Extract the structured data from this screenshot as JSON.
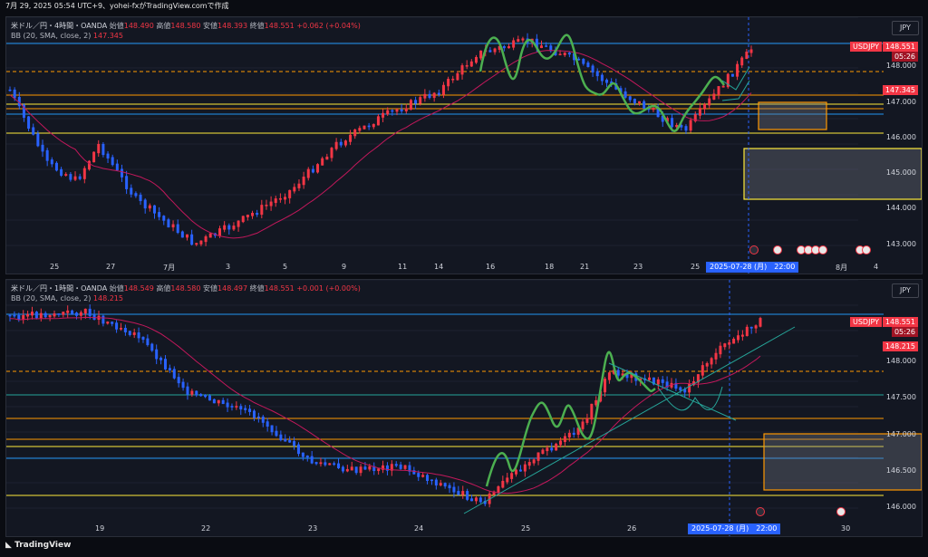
{
  "header": {
    "text": "7月 29, 2025 05:54 UTC+9、yohei-fxがTradingView.comで作成"
  },
  "footer": {
    "logo_text": "TradingView"
  },
  "panels": [
    {
      "symbol_line": "米ドル／円・4時間・OANDA",
      "ohlc": {
        "open_label": "始値",
        "open": "148.490",
        "high_label": "高値",
        "high": "148.580",
        "low_label": "安値",
        "low": "148.393",
        "close_label": "終値",
        "close": "148.551",
        "change": "+0.062 (+0.04%)"
      },
      "bb_label": "BB (20, SMA, close, 2)",
      "bb_value": "147.345",
      "currency": "JPY",
      "symbol_tag": "USDJPY",
      "price_tag": "148.551",
      "countdown": "05:26",
      "bb_tag": "147.345",
      "price_axis": [
        "148.000",
        "147.000",
        "146.000",
        "145.000",
        "144.000",
        "143.000"
      ],
      "date_axis": [
        "25",
        "27",
        "7月",
        "3",
        "5",
        "9",
        "11",
        "14",
        "16",
        "18",
        "21",
        "23",
        "25",
        "8月",
        "4"
      ],
      "cursor_date": "2025-07-28 (月)　22:00"
    },
    {
      "symbol_line": "米ドル／円・1時間・OANDA",
      "ohlc": {
        "open_label": "始値",
        "open": "148.549",
        "high_label": "高値",
        "high": "148.580",
        "low_label": "安値",
        "low": "148.497",
        "close_label": "終値",
        "close": "148.551",
        "change": "+0.001 (+0.00%)"
      },
      "bb_label": "BB (20, SMA, close, 2)",
      "bb_value": "148.215",
      "currency": "JPY",
      "symbol_tag": "USDJPY",
      "price_tag": "148.551",
      "countdown": "05:26",
      "bb_tag": "148.215",
      "price_axis": [
        "148.000",
        "147.500",
        "147.000",
        "146.500",
        "146.000"
      ],
      "date_axis": [
        "19",
        "22",
        "23",
        "24",
        "25",
        "26",
        "30"
      ],
      "cursor_date": "2025-07-28 (月)　22:00"
    }
  ],
  "colors": {
    "up": "#f23645",
    "down": "#2962ff",
    "bb": "#c2185b",
    "wave": "#4caf50",
    "hline_orange": "#ff9800",
    "hline_yellow": "#ffeb3b",
    "hline_blue": "#2196f3"
  }
}
